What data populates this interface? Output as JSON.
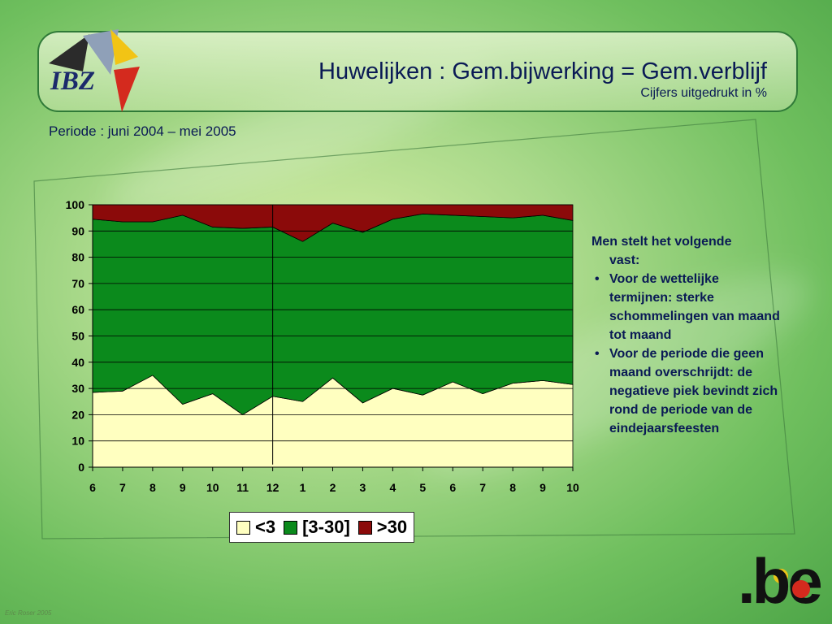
{
  "header": {
    "logo_text": "IBZ",
    "title": "Huwelijken : Gem.bijwerking = Gem.verblijf",
    "subtitle": "Cijfers uitgedrukt in  %"
  },
  "period": "Periode : juni 2004 – mei 2005",
  "notes": {
    "intro_1": "Men  stelt het volgende",
    "intro_2": "vast:",
    "bullets": [
      "Voor de wettelijke termijnen: sterke schommelingen van maand tot maand",
      "Voor de periode die geen maand overschrijdt: de negatieve piek bevindt zich rond de periode van de eindejaarsfeesten"
    ]
  },
  "footer": {
    "brand": ".be",
    "watermark": "Eric Roser 2005"
  },
  "colors": {
    "lt3": "#ffffc0",
    "mid": "#0b8a1c",
    "gt30": "#8b0a0a"
  },
  "chart_data": {
    "type": "area",
    "stacked": true,
    "x": [
      "6",
      "7",
      "8",
      "9",
      "10",
      "11",
      "12",
      "1",
      "2",
      "3",
      "4",
      "5",
      "6",
      "7",
      "8",
      "9",
      "10"
    ],
    "ylim": [
      0,
      100
    ],
    "yticks": [
      0,
      10,
      20,
      30,
      40,
      50,
      60,
      70,
      80,
      90,
      100
    ],
    "grid": true,
    "divider_after_index": 6,
    "series": [
      {
        "name": "<3",
        "color": "#ffffc0",
        "values": [
          28.5,
          29,
          35,
          24,
          28,
          20,
          27,
          25,
          34,
          24.5,
          30,
          27.5,
          32.5,
          28,
          32,
          33,
          31.5
        ]
      },
      {
        "name": "[3-30]",
        "color": "#0b8a1c",
        "values": [
          66,
          64.5,
          58.5,
          72,
          63.5,
          71,
          64.5,
          61,
          59,
          65,
          64.5,
          69,
          63.5,
          67.5,
          63,
          63,
          62.5
        ]
      },
      {
        "name": ">30",
        "color": "#8b0a0a",
        "values": [
          5.5,
          6.5,
          6.5,
          4,
          8.5,
          9,
          8.5,
          14,
          7,
          10.5,
          5.5,
          3.5,
          4,
          4.5,
          5,
          4,
          6
        ]
      }
    ],
    "legend_position": "bottom"
  }
}
